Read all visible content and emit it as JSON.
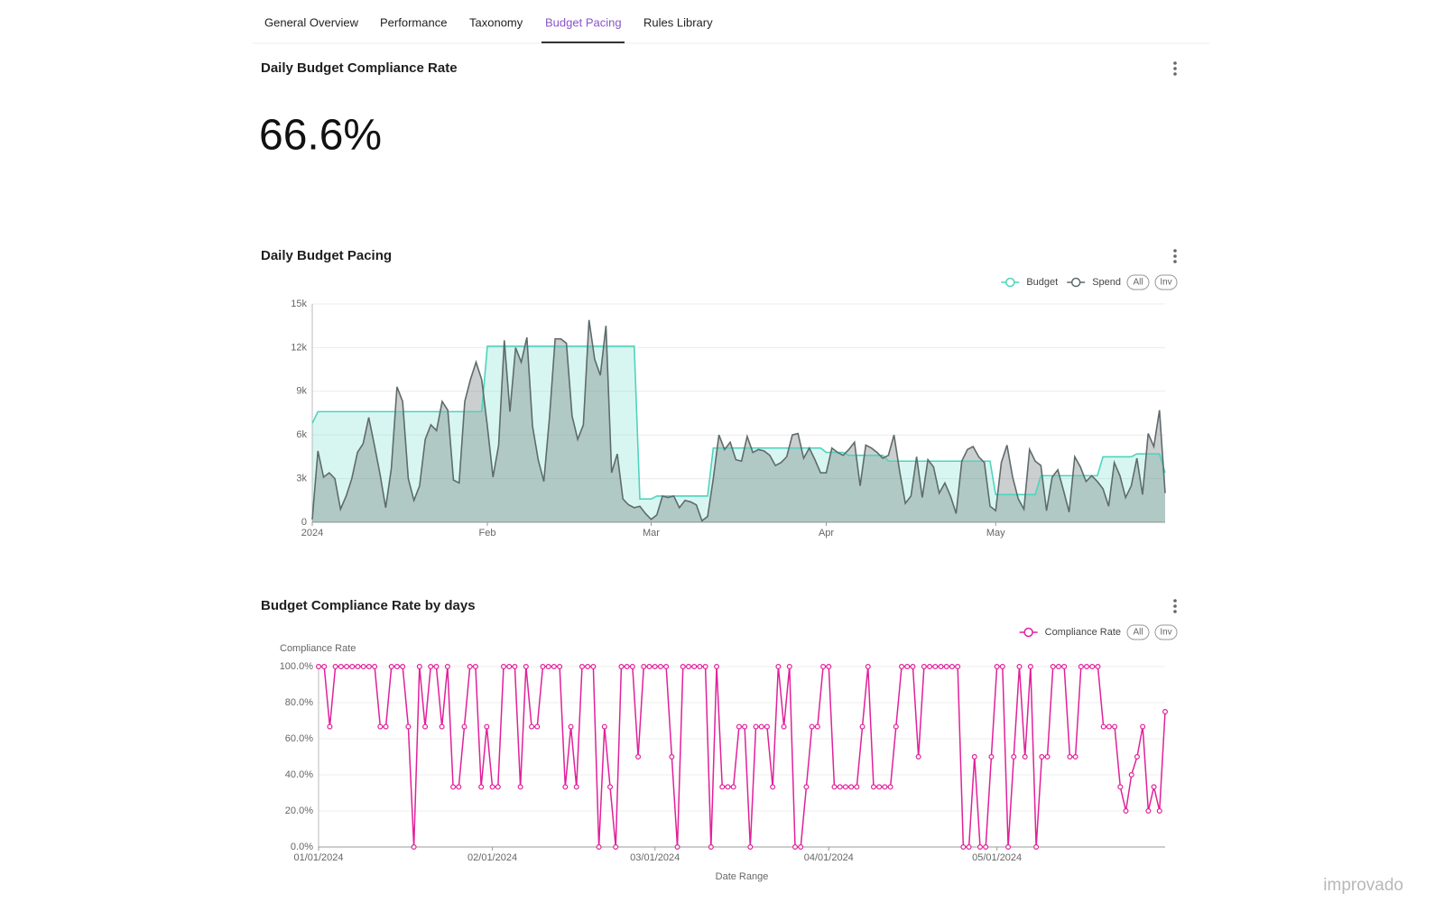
{
  "tabs": [
    "General Overview",
    "Performance",
    "Taxonomy",
    "Budget Pacing",
    "Rules Library"
  ],
  "active_tab": "Budget Pacing",
  "kpi": {
    "title": "Daily Budget Compliance Rate",
    "value": "66.6%"
  },
  "watermark": "improvado",
  "chart_data": [
    {
      "type": "area",
      "title": "Daily Budget Pacing",
      "categories": [
        "2024",
        null,
        null,
        null,
        null,
        null,
        null,
        null,
        null,
        null,
        null,
        null,
        null,
        null,
        null,
        null,
        null,
        null,
        null,
        null,
        null,
        null,
        null,
        null,
        null,
        null,
        null,
        null,
        null,
        null,
        null,
        "Feb",
        null,
        null,
        null,
        null,
        null,
        null,
        null,
        null,
        null,
        null,
        null,
        null,
        null,
        null,
        null,
        null,
        null,
        null,
        null,
        null,
        null,
        null,
        null,
        null,
        null,
        null,
        null,
        null,
        "Mar",
        null,
        null,
        null,
        null,
        null,
        null,
        null,
        null,
        null,
        null,
        null,
        null,
        null,
        null,
        null,
        null,
        null,
        null,
        null,
        null,
        null,
        null,
        null,
        null,
        null,
        null,
        null,
        null,
        null,
        null,
        "Apr",
        null,
        null,
        null,
        null,
        null,
        null,
        null,
        null,
        null,
        null,
        null,
        null,
        null,
        null,
        null,
        null,
        null,
        null,
        null,
        null,
        null,
        null,
        null,
        null,
        null,
        null,
        null,
        null,
        null,
        "May",
        null,
        null,
        null,
        null,
        null,
        null,
        null,
        null,
        null,
        null,
        null,
        null,
        null,
        null,
        null,
        null,
        null,
        null,
        null,
        null,
        null,
        null,
        null,
        null,
        null,
        null,
        null,
        null,
        null,
        null
      ],
      "series": [
        {
          "name": "Budget",
          "color": "#4dd4bd",
          "values": [
            6800,
            7600,
            7600,
            7600,
            7600,
            7600,
            7600,
            7600,
            7600,
            7600,
            7600,
            7600,
            7600,
            7600,
            7600,
            7600,
            7600,
            7600,
            7600,
            7600,
            7600,
            7600,
            7600,
            7600,
            7600,
            7600,
            7600,
            7600,
            7600,
            7600,
            7600,
            12100,
            12100,
            12100,
            12100,
            12100,
            12100,
            12100,
            12100,
            12100,
            12100,
            12100,
            12100,
            12100,
            12100,
            12100,
            12100,
            12100,
            12100,
            12100,
            12100,
            12100,
            12100,
            12100,
            12100,
            12100,
            12100,
            12100,
            1600,
            1600,
            1600,
            1800,
            1800,
            1800,
            1800,
            1800,
            1800,
            1800,
            1800,
            1800,
            1800,
            5100,
            5100,
            5100,
            5100,
            5100,
            5100,
            5100,
            5100,
            5100,
            5100,
            5100,
            5100,
            5100,
            5100,
            5100,
            5100,
            5100,
            5100,
            5100,
            5100,
            4800,
            4800,
            4800,
            4800,
            4600,
            4600,
            4600,
            4600,
            4600,
            4600,
            4600,
            4200,
            4200,
            4200,
            4200,
            4200,
            4200,
            4200,
            4200,
            4200,
            4200,
            4200,
            4200,
            4200,
            4200,
            4200,
            4200,
            4200,
            4200,
            4200,
            1900,
            1900,
            1900,
            1900,
            1900,
            1900,
            1900,
            1900,
            3200,
            3200,
            3200,
            3200,
            3200,
            3200,
            3200,
            3200,
            3200,
            3200,
            3200,
            4500,
            4500,
            4500,
            4500,
            4500,
            4500,
            4700,
            4700,
            4700,
            4700,
            4700,
            3400
          ]
        },
        {
          "name": "Spend",
          "color": "#5f6b6b",
          "values": [
            200,
            4900,
            3100,
            3400,
            3000,
            900,
            1800,
            3000,
            4800,
            5400,
            7200,
            5300,
            3300,
            1000,
            3700,
            9300,
            8300,
            3000,
            1500,
            2500,
            5700,
            6700,
            6300,
            8300,
            7700,
            2900,
            2700,
            8300,
            9800,
            11000,
            9800,
            6600,
            3100,
            5300,
            12500,
            7600,
            12000,
            11000,
            12700,
            6600,
            4300,
            2800,
            7200,
            12600,
            12600,
            12300,
            7300,
            5700,
            6700,
            13900,
            11200,
            10100,
            13500,
            3400,
            4700,
            1600,
            1200,
            1000,
            1100,
            600,
            200,
            500,
            1800,
            1700,
            1800,
            1000,
            1500,
            1400,
            1200,
            100,
            400,
            3000,
            6000,
            5000,
            5500,
            4300,
            4200,
            5900,
            4800,
            5000,
            4900,
            4600,
            3900,
            4100,
            4500,
            6000,
            6100,
            4400,
            5100,
            4300,
            3400,
            3400,
            5100,
            4800,
            4600,
            5000,
            5500,
            2500,
            5300,
            5100,
            4800,
            4400,
            4600,
            6000,
            3500,
            1300,
            1800,
            4500,
            1700,
            4300,
            3800,
            2000,
            2700,
            1800,
            600,
            4200,
            5000,
            5200,
            4500,
            4100,
            1100,
            800,
            4100,
            5300,
            3100,
            1600,
            900,
            5000,
            4200,
            3900,
            800,
            3100,
            3600,
            2200,
            700,
            4500,
            3800,
            2800,
            3200,
            2800,
            2300,
            1100,
            4100,
            3200,
            1700,
            2500,
            4400,
            1900,
            6100,
            5200,
            7700,
            2000
          ]
        }
      ],
      "ylim": [
        0,
        15000
      ],
      "yticks": [
        0,
        {
          "value": 3000,
          "label": "3k"
        },
        {
          "value": 6000,
          "label": "6k"
        },
        {
          "value": 9000,
          "label": "9k"
        },
        {
          "value": 12000,
          "label": "12k"
        },
        {
          "value": 15000,
          "label": "15k"
        }
      ],
      "grid": true,
      "legend_buttons": [
        "All",
        "Inv"
      ]
    },
    {
      "type": "line",
      "title": "Budget Compliance Rate by days",
      "ylabel": "Compliance Rate",
      "xlabel": "Date Range",
      "categories": [
        "01/01/2024",
        null,
        null,
        null,
        null,
        null,
        null,
        null,
        null,
        null,
        null,
        null,
        null,
        null,
        null,
        null,
        null,
        null,
        null,
        null,
        null,
        null,
        null,
        null,
        null,
        null,
        null,
        null,
        null,
        null,
        null,
        "02/01/2024",
        null,
        null,
        null,
        null,
        null,
        null,
        null,
        null,
        null,
        null,
        null,
        null,
        null,
        null,
        null,
        null,
        null,
        null,
        null,
        null,
        null,
        null,
        null,
        null,
        null,
        null,
        null,
        null,
        "03/01/2024",
        null,
        null,
        null,
        null,
        null,
        null,
        null,
        null,
        null,
        null,
        null,
        null,
        null,
        null,
        null,
        null,
        null,
        null,
        null,
        null,
        null,
        null,
        null,
        null,
        null,
        null,
        null,
        null,
        null,
        null,
        "04/01/2024",
        null,
        null,
        null,
        null,
        null,
        null,
        null,
        null,
        null,
        null,
        null,
        null,
        null,
        null,
        null,
        null,
        null,
        null,
        null,
        null,
        null,
        null,
        null,
        null,
        null,
        null,
        null,
        null,
        null,
        "05/01/2024",
        null,
        null,
        null,
        null,
        null,
        null,
        null,
        null,
        null,
        null,
        null,
        null,
        null,
        null,
        null,
        null,
        null,
        null,
        null,
        null,
        null,
        null,
        null,
        null,
        null,
        null,
        null,
        null,
        null,
        null
      ],
      "series": [
        {
          "name": "Compliance Rate",
          "color": "#e0219a",
          "values": [
            100,
            100,
            66.7,
            100,
            100,
            100,
            100,
            100,
            100,
            100,
            100,
            66.7,
            66.7,
            100,
            100,
            100,
            66.7,
            0,
            100,
            66.7,
            100,
            100,
            66.7,
            100,
            33.3,
            33.3,
            66.7,
            100,
            100,
            33.3,
            66.7,
            33.3,
            33.3,
            100,
            100,
            100,
            33.3,
            100,
            66.7,
            66.7,
            100,
            100,
            100,
            100,
            33.3,
            66.7,
            33.3,
            100,
            100,
            100,
            0,
            66.7,
            33.3,
            0,
            100,
            100,
            100,
            50,
            100,
            100,
            100,
            100,
            100,
            50,
            0,
            100,
            100,
            100,
            100,
            100,
            0,
            100,
            33.3,
            33.3,
            33.3,
            66.7,
            66.7,
            0,
            66.7,
            66.7,
            66.7,
            33.3,
            100,
            66.7,
            100,
            0,
            0,
            33.3,
            66.7,
            66.7,
            100,
            100,
            33.3,
            33.3,
            33.3,
            33.3,
            33.3,
            66.7,
            100,
            33.3,
            33.3,
            33.3,
            33.3,
            66.7,
            100,
            100,
            100,
            50,
            100,
            100,
            100,
            100,
            100,
            100,
            100,
            0,
            0,
            50,
            0,
            0,
            50,
            100,
            100,
            0,
            50,
            100,
            50,
            100,
            0,
            50,
            50,
            100,
            100,
            100,
            50,
            50,
            100,
            100,
            100,
            100,
            66.7,
            66.7,
            66.7,
            33.3,
            20,
            40,
            50,
            66.7,
            20,
            33.3,
            20,
            75
          ]
        }
      ],
      "ylim": [
        0,
        100
      ],
      "yticks": [
        {
          "value": 0,
          "label": "0.0%"
        },
        {
          "value": 20,
          "label": "20.0%"
        },
        {
          "value": 40,
          "label": "40.0%"
        },
        {
          "value": 60,
          "label": "60.0%"
        },
        {
          "value": 80,
          "label": "80.0%"
        },
        {
          "value": 100,
          "label": "100.0%"
        }
      ],
      "grid": true,
      "legend_buttons": [
        "All",
        "Inv"
      ]
    }
  ]
}
